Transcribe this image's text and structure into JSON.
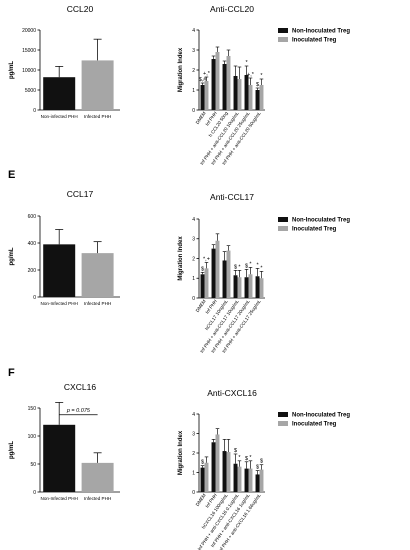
{
  "panel_labels": {
    "E": "E",
    "F": "F"
  },
  "colors": {
    "noninoculated": "#111111",
    "inoculated": "#a6a6a6",
    "error": "#111111"
  },
  "chart_data": [
    {
      "id": "ccl20",
      "type": "bar",
      "title": "CCL20",
      "ylabel": "pg/mL",
      "xlabel": "",
      "ylim": [
        0,
        20000
      ],
      "yticks": [
        "0",
        "5000",
        "10000",
        "15000",
        "20000"
      ],
      "categories": [
        "Non-infected PHH",
        "Infected PHH"
      ],
      "values": [
        8200,
        12400
      ],
      "errors": [
        2700,
        5300
      ]
    },
    {
      "id": "anti-ccl20",
      "type": "bar",
      "title": "Anti-CCL20",
      "ylabel": "Migration Index",
      "xlabel": "",
      "ylim": [
        0,
        4
      ],
      "yticks": [
        "0",
        "1",
        "2",
        "3",
        "4"
      ],
      "legend": "top-right",
      "categories": [
        "DMEM",
        "Inf PHH",
        "h CCL20 50ng",
        "Inf PHH + anti-CCL20 10ug/mL",
        "Inf PHH + anti-CCL20 25ug/mL",
        "Inf PHH + anti-CCL20 50ug/mL"
      ],
      "series": [
        {
          "name": "Non-Inoculated Treg",
          "values": [
            1.25,
            2.55,
            2.3,
            1.7,
            1.75,
            1.0
          ],
          "errors": [
            0.1,
            0.15,
            0.15,
            0.5,
            0.45,
            0.1
          ]
        },
        {
          "name": "Inoculated Treg",
          "values": [
            1.45,
            2.9,
            2.7,
            1.55,
            1.25,
            1.25
          ],
          "errors": [
            0.2,
            0.25,
            0.3,
            0.6,
            0.35,
            0.3
          ]
        }
      ],
      "annotations": [
        {
          "i": 0,
          "s": 0,
          "text": "$,#"
        },
        {
          "i": 0,
          "s": 1,
          "text": "+,*"
        },
        {
          "i": 4,
          "s": 0,
          "text": "*"
        },
        {
          "i": 4,
          "s": 1,
          "text": "+,*"
        },
        {
          "i": 5,
          "s": 0,
          "text": "$"
        },
        {
          "i": 5,
          "s": 1,
          "text": "*"
        }
      ]
    },
    {
      "id": "ccl17",
      "type": "bar",
      "title": "CCL17",
      "ylabel": "pg/mL",
      "xlabel": "",
      "ylim": [
        0,
        600
      ],
      "yticks": [
        "0",
        "200",
        "400",
        "600"
      ],
      "categories": [
        "Non-Infected PHH",
        "Infected PHH"
      ],
      "values": [
        390,
        325
      ],
      "errors": [
        110,
        85
      ]
    },
    {
      "id": "anti-ccl17",
      "type": "bar",
      "title": "Anti-CCL17",
      "ylabel": "Migration Index",
      "xlabel": "",
      "ylim": [
        0,
        4
      ],
      "yticks": [
        "0",
        "1",
        "2",
        "3",
        "4"
      ],
      "legend": "top-right",
      "categories": [
        "DMEM",
        "Inf PHH",
        "hCCL17 10ng/mL",
        "Inf PHH + anti-CCL17 10ug/mL",
        "Inf PHH + anti-CCL17 20ug/mL",
        "Inf PHH + anti-CCL17 25ug/mL"
      ],
      "series": [
        {
          "name": "Non-Inoculated Treg",
          "values": [
            1.2,
            2.5,
            1.9,
            1.15,
            1.05,
            1.1
          ],
          "errors": [
            0.1,
            0.2,
            0.45,
            0.25,
            0.4,
            0.4
          ]
        },
        {
          "name": "Inoculated Treg",
          "values": [
            1.5,
            2.9,
            2.4,
            1.05,
            1.2,
            1.0
          ],
          "errors": [
            0.3,
            0.35,
            0.25,
            0.35,
            0.35,
            0.35
          ]
        }
      ],
      "annotations": [
        {
          "i": 0,
          "s": 0,
          "text": "$"
        },
        {
          "i": 0,
          "s": 1,
          "text": "*,+"
        },
        {
          "i": 3,
          "s": 0,
          "text": "$"
        },
        {
          "i": 3,
          "s": 1,
          "text": "*"
        },
        {
          "i": 4,
          "s": 0,
          "text": "$"
        },
        {
          "i": 4,
          "s": 1,
          "text": "*"
        },
        {
          "i": 5,
          "s": 0,
          "text": "*"
        },
        {
          "i": 5,
          "s": 1,
          "text": "*"
        }
      ]
    },
    {
      "id": "cxcl16",
      "type": "bar",
      "title": "CXCL16",
      "ylabel": "pg/mL",
      "xlabel": "",
      "ylim": [
        0,
        150
      ],
      "yticks": [
        "0",
        "50",
        "100",
        "150"
      ],
      "categories": [
        "Non-Infected PHH",
        "Infected PHH"
      ],
      "values": [
        120,
        52
      ],
      "errors": [
        40,
        18
      ],
      "bracket": {
        "text": "p = 0.075",
        "y": 138
      }
    },
    {
      "id": "anti-cxcl16",
      "type": "bar",
      "title": "Anti-CXCL16",
      "ylabel": "Migration Index",
      "xlabel": "",
      "ylim": [
        0,
        4
      ],
      "yticks": [
        "0",
        "1",
        "2",
        "3",
        "4"
      ],
      "legend": "top-right",
      "categories": [
        "DMEM",
        "Inf PHH",
        "hCXCL16 100ng/mL",
        "Inf PHH + anti-CXCL16 0.1ug/mL",
        "Inf PHH + anti-CXCL16 1ug/mL",
        "Inf PHH + anti-CXCL16 1.66ug/mL"
      ],
      "series": [
        {
          "name": "Non-Inoculated Treg",
          "values": [
            1.25,
            2.55,
            2.1,
            1.45,
            1.2,
            0.9
          ],
          "errors": [
            0.1,
            0.15,
            0.6,
            0.5,
            0.35,
            0.2
          ]
        },
        {
          "name": "Inoculated Treg",
          "values": [
            1.5,
            2.95,
            2.05,
            1.3,
            1.2,
            1.15
          ],
          "errors": [
            0.3,
            0.3,
            0.65,
            0.3,
            0.4,
            0.25
          ]
        }
      ],
      "annotations": [
        {
          "i": 0,
          "s": 0,
          "text": "$"
        },
        {
          "i": 3,
          "s": 0,
          "text": "$"
        },
        {
          "i": 3,
          "s": 1,
          "text": "*"
        },
        {
          "i": 4,
          "s": 0,
          "text": "$"
        },
        {
          "i": 4,
          "s": 1,
          "text": "*"
        },
        {
          "i": 5,
          "s": 0,
          "text": "$"
        },
        {
          "i": 5,
          "s": 1,
          "text": "$"
        }
      ]
    }
  ]
}
